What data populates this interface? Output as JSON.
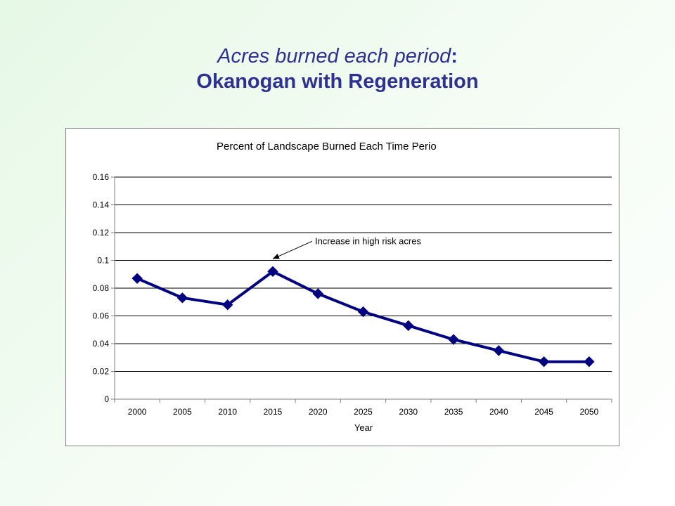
{
  "slide": {
    "title_italic": "Acres burned each period",
    "title_colon": ":",
    "title_bold": "Okanogan with Regeneration"
  },
  "chart_data": {
    "type": "line",
    "title": "Percent of Landscape Burned Each Time Perio",
    "xlabel": "Year",
    "ylabel": "",
    "categories": [
      "2000",
      "2005",
      "2010",
      "2015",
      "2020",
      "2025",
      "2030",
      "2035",
      "2040",
      "2045",
      "2050"
    ],
    "series": [
      {
        "values": [
          0.087,
          0.073,
          0.068,
          0.092,
          0.076,
          0.063,
          0.053,
          0.043,
          0.035,
          0.027,
          0.027
        ]
      }
    ],
    "ylim": [
      0,
      0.16
    ],
    "yticks": [
      "0",
      "0.02",
      "0.04",
      "0.06",
      "0.08",
      "0.1",
      "0.12",
      "0.14",
      "0.16"
    ],
    "grid": true,
    "legend": "none",
    "annotation": {
      "text": "Increase in high risk acres",
      "target_category": "2015"
    },
    "colors": {
      "series": "#000080",
      "grid": "#000000",
      "axis": "#808080"
    }
  }
}
